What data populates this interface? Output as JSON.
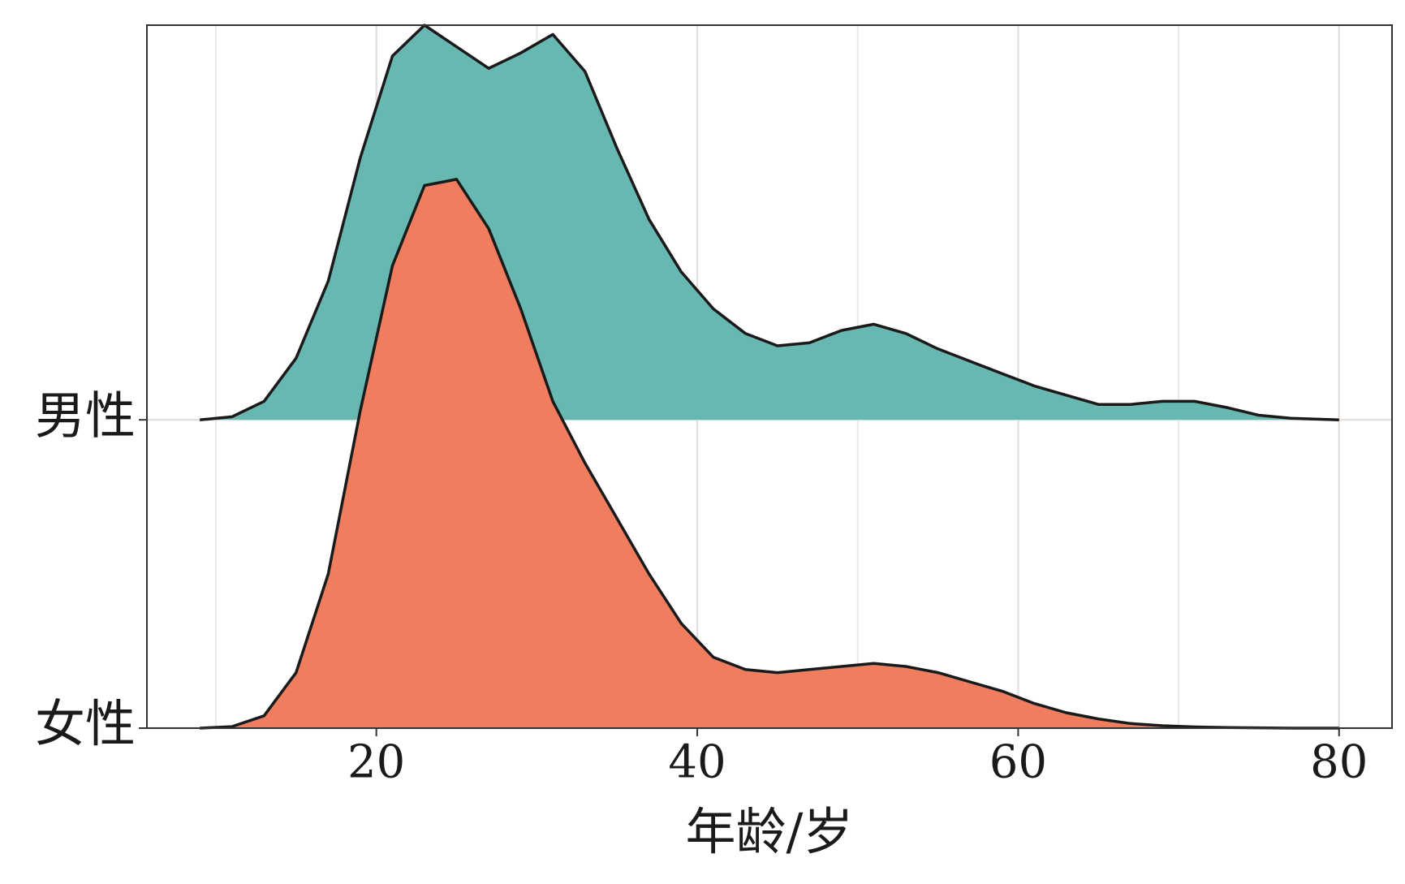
{
  "chart_data": {
    "type": "ridgeline",
    "x_label": "年龄/岁",
    "categories": [
      "女性",
      "男性"
    ],
    "x": [
      9,
      11,
      13,
      15,
      17,
      19,
      21,
      23,
      25,
      27,
      29,
      31,
      33,
      35,
      37,
      39,
      41,
      43,
      45,
      47,
      49,
      51,
      53,
      55,
      57,
      59,
      61,
      63,
      65,
      67,
      69,
      71,
      73,
      75,
      77,
      80
    ],
    "series": [
      {
        "color": "#ef7d5e",
        "values": [
          0,
          0.005,
          0.04,
          0.18,
          0.5,
          1.03,
          1.5,
          1.76,
          1.78,
          1.62,
          1.36,
          1.06,
          0.86,
          0.68,
          0.5,
          0.34,
          0.23,
          0.19,
          0.18,
          0.19,
          0.2,
          0.21,
          0.2,
          0.18,
          0.15,
          0.12,
          0.08,
          0.05,
          0.03,
          0.015,
          0.008,
          0.004,
          0.002,
          0.001,
          0,
          0
        ]
      },
      {
        "color": "#66b8b1",
        "values": [
          0,
          0.01,
          0.06,
          0.2,
          0.45,
          0.85,
          1.18,
          1.28,
          1.21,
          1.14,
          1.19,
          1.25,
          1.13,
          0.88,
          0.65,
          0.48,
          0.36,
          0.28,
          0.24,
          0.25,
          0.29,
          0.31,
          0.28,
          0.23,
          0.19,
          0.15,
          0.11,
          0.08,
          0.05,
          0.05,
          0.06,
          0.06,
          0.04,
          0.015,
          0.005,
          0
        ]
      }
    ],
    "xlim": [
      5.7,
      83.3
    ],
    "xticks": [
      20,
      40,
      60,
      80
    ],
    "minor_xgrid": [
      10,
      30,
      50,
      70
    ],
    "ylim": [
      0,
      2.28
    ],
    "grid": true
  }
}
